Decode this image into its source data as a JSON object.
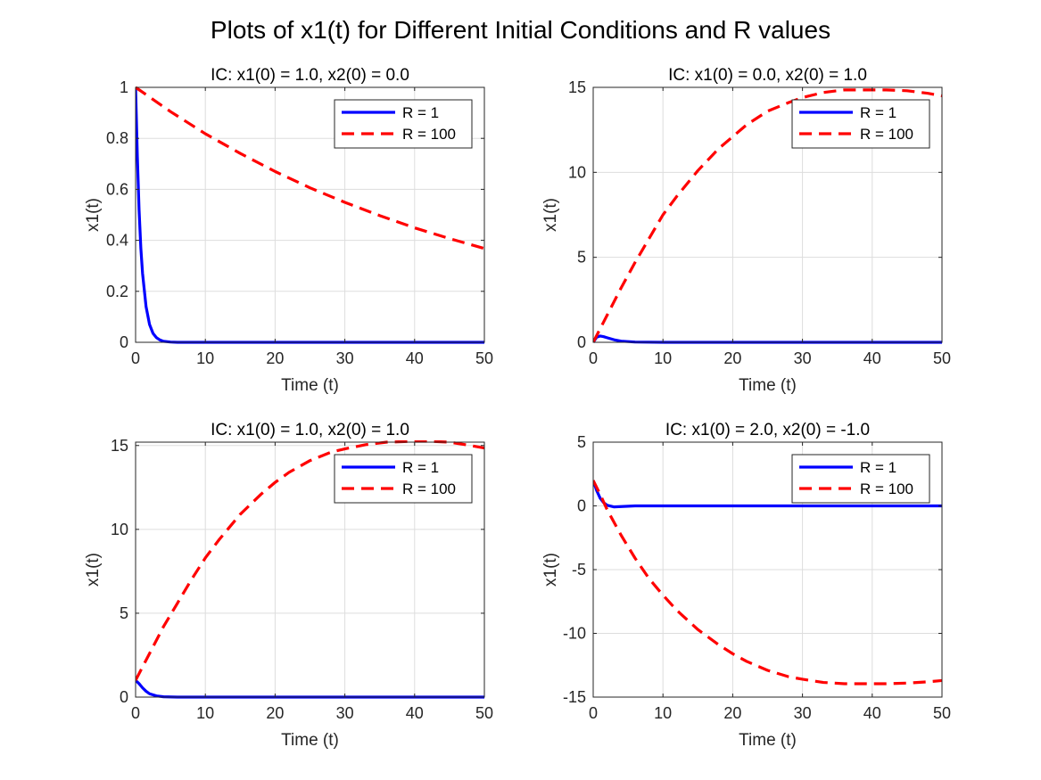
{
  "figure": {
    "title": "Plots of x1(t) for Different Initial Conditions and R values"
  },
  "colors": {
    "series_r1": "#0000ff",
    "series_r100": "#ff0000",
    "grid": "#dddddd",
    "axes": "#262626"
  },
  "chart_data": [
    {
      "type": "line",
      "title": "IC: x1(0) = 1.0, x2(0) = 0.0",
      "xlabel": "Time (t)",
      "ylabel": "x1(t)",
      "xlim": [
        0,
        50
      ],
      "ylim": [
        0,
        1
      ],
      "xticks": [
        0,
        10,
        20,
        30,
        40,
        50
      ],
      "xtick_labels": [
        "0",
        "10",
        "20",
        "30",
        "40",
        "50"
      ],
      "yticks": [
        0,
        0.2,
        0.4,
        0.6,
        0.8,
        1
      ],
      "ytick_labels": [
        "0",
        "0.2",
        "0.4",
        "0.6",
        "0.8",
        "1"
      ],
      "grid": true,
      "legend": "top-right",
      "series": [
        {
          "name": "R = 1",
          "style": "solid",
          "x": [
            0,
            0.25,
            0.5,
            0.75,
            1,
            1.5,
            2,
            2.5,
            3,
            3.5,
            4,
            5,
            6,
            8,
            10,
            20,
            30,
            40,
            50
          ],
          "y": [
            1.0,
            0.73,
            0.52,
            0.37,
            0.27,
            0.14,
            0.07,
            0.035,
            0.018,
            0.009,
            0.004,
            0.001,
            0,
            0,
            0,
            0,
            0,
            0,
            0
          ]
        },
        {
          "name": "R = 100",
          "style": "dashed",
          "x": [
            0,
            5,
            10,
            15,
            20,
            25,
            30,
            35,
            40,
            45,
            50
          ],
          "y": [
            1.0,
            0.905,
            0.818,
            0.741,
            0.67,
            0.606,
            0.549,
            0.497,
            0.449,
            0.407,
            0.368
          ]
        }
      ]
    },
    {
      "type": "line",
      "title": "IC: x1(0) = 0.0, x2(0) = 1.0",
      "xlabel": "Time (t)",
      "ylabel": "x1(t)",
      "xlim": [
        0,
        50
      ],
      "ylim": [
        0,
        15
      ],
      "xticks": [
        0,
        10,
        20,
        30,
        40,
        50
      ],
      "xtick_labels": [
        "0",
        "10",
        "20",
        "30",
        "40",
        "50"
      ],
      "yticks": [
        0,
        5,
        10,
        15
      ],
      "ytick_labels": [
        "0",
        "5",
        "10",
        "15"
      ],
      "grid": true,
      "legend": "top-right",
      "series": [
        {
          "name": "R = 1",
          "style": "solid",
          "x": [
            0,
            0.5,
            1,
            1.5,
            2,
            3,
            4,
            6,
            10,
            20,
            30,
            40,
            50
          ],
          "y": [
            0,
            0.3,
            0.37,
            0.33,
            0.27,
            0.15,
            0.07,
            0.015,
            0,
            0,
            0,
            0,
            0
          ]
        },
        {
          "name": "R = 100",
          "style": "dashed",
          "x": [
            0,
            2,
            4,
            6,
            8,
            10,
            12,
            15,
            18,
            20,
            22,
            25,
            28,
            30,
            33,
            36,
            40,
            42,
            45,
            48,
            50
          ],
          "y": [
            0,
            1.6,
            3.2,
            4.7,
            6.1,
            7.5,
            8.6,
            10.1,
            11.4,
            12.1,
            12.8,
            13.6,
            14.1,
            14.4,
            14.7,
            14.85,
            14.85,
            14.85,
            14.8,
            14.65,
            14.5
          ]
        }
      ]
    },
    {
      "type": "line",
      "title": "IC: x1(0) = 1.0, x2(0) = 1.0",
      "xlabel": "Time (t)",
      "ylabel": "x1(t)",
      "xlim": [
        0,
        50
      ],
      "ylim": [
        0,
        15.2
      ],
      "xticks": [
        0,
        10,
        20,
        30,
        40,
        50
      ],
      "xtick_labels": [
        "0",
        "10",
        "20",
        "30",
        "40",
        "50"
      ],
      "yticks": [
        0,
        5,
        10,
        15
      ],
      "ytick_labels": [
        "0",
        "5",
        "10",
        "15"
      ],
      "grid": true,
      "legend": "top-right",
      "series": [
        {
          "name": "R = 1",
          "style": "solid",
          "x": [
            0,
            0.5,
            1,
            1.5,
            2,
            3,
            4,
            6,
            10,
            20,
            30,
            40,
            50
          ],
          "y": [
            1.0,
            0.8,
            0.55,
            0.35,
            0.2,
            0.07,
            0.02,
            0,
            0,
            0,
            0,
            0,
            0
          ]
        },
        {
          "name": "R = 100",
          "style": "dashed",
          "x": [
            0,
            2,
            4,
            6,
            8,
            10,
            12,
            15,
            18,
            20,
            22,
            25,
            28,
            30,
            33,
            36,
            40,
            42,
            45,
            48,
            50
          ],
          "y": [
            1.0,
            2.6,
            4.2,
            5.6,
            7.0,
            8.3,
            9.4,
            10.9,
            12.1,
            12.8,
            13.4,
            14.1,
            14.6,
            14.8,
            15.05,
            15.2,
            15.25,
            15.25,
            15.2,
            15.0,
            14.85
          ]
        }
      ]
    },
    {
      "type": "line",
      "title": "IC: x1(0) = 2.0, x2(0) = -1.0",
      "xlabel": "Time (t)",
      "ylabel": "x1(t)",
      "xlim": [
        0,
        50
      ],
      "ylim": [
        -15,
        5
      ],
      "xticks": [
        0,
        10,
        20,
        30,
        40,
        50
      ],
      "xtick_labels": [
        "0",
        "10",
        "20",
        "30",
        "40",
        "50"
      ],
      "yticks": [
        -15,
        -10,
        -5,
        0,
        5
      ],
      "ytick_labels": [
        "-15",
        "-10",
        "-5",
        "0",
        "5"
      ],
      "grid": true,
      "legend": "top-right",
      "series": [
        {
          "name": "R = 1",
          "style": "solid",
          "x": [
            0,
            0.5,
            1,
            1.5,
            2,
            3,
            4,
            6,
            10,
            20,
            30,
            40,
            50
          ],
          "y": [
            2.0,
            1.2,
            0.6,
            0.25,
            0.05,
            -0.08,
            -0.05,
            0,
            0,
            0,
            0,
            0,
            0
          ]
        },
        {
          "name": "R = 100",
          "style": "dashed",
          "x": [
            0,
            1,
            2,
            4,
            6,
            8,
            10,
            12,
            15,
            18,
            20,
            22,
            25,
            28,
            30,
            33,
            36,
            40,
            42,
            45,
            48,
            50
          ],
          "y": [
            2.0,
            0.9,
            -0.3,
            -2.3,
            -4.1,
            -5.7,
            -7.0,
            -8.2,
            -9.7,
            -10.9,
            -11.6,
            -12.2,
            -12.9,
            -13.4,
            -13.6,
            -13.85,
            -13.95,
            -13.95,
            -13.95,
            -13.9,
            -13.8,
            -13.7
          ]
        }
      ]
    }
  ]
}
